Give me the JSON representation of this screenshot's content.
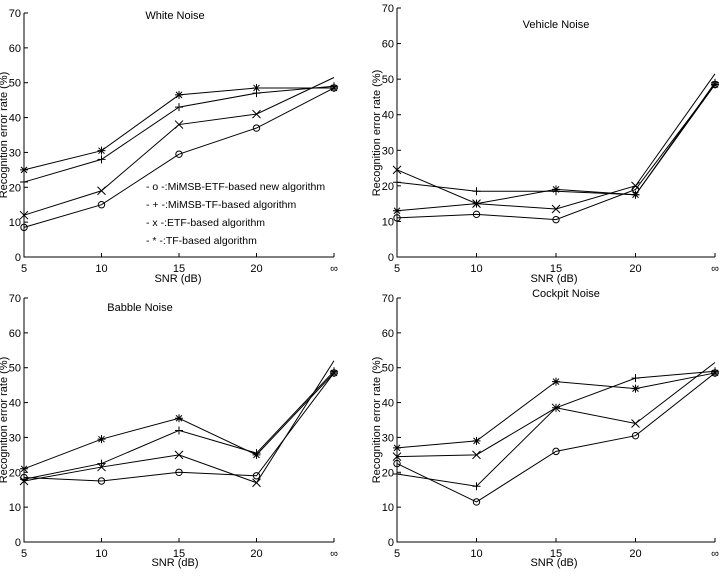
{
  "legend": [
    {
      "mark": "o",
      "text": "- o -:MiMSB-ETF-based new algorithm"
    },
    {
      "mark": "+",
      "text": "- + -:MiMSB-TF-based algorithm"
    },
    {
      "mark": "x",
      "text": "- x -:ETF-based algorithm"
    },
    {
      "mark": "*",
      "text": "- * -:TF-based algorithm"
    }
  ],
  "chart_data": [
    {
      "type": "line",
      "title": "White Noise",
      "xlabel": "SNR (dB)",
      "ylabel": "Recognition error rate (%)",
      "categories": [
        "5",
        "10",
        "15",
        "20",
        "∞"
      ],
      "ylim": [
        0,
        70
      ],
      "yticks": [
        0,
        10,
        20,
        30,
        40,
        50,
        60,
        70
      ],
      "series": [
        {
          "name": "- o -:MiMSB-ETF-based new algorithm",
          "marker": "o",
          "values": [
            8.5,
            15,
            29.5,
            37,
            48.5
          ]
        },
        {
          "name": "- + -:MiMSB-TF-based algorithm",
          "marker": "+",
          "values": [
            21.5,
            28,
            43,
            47,
            49
          ]
        },
        {
          "name": "- x -:ETF-based algorithm",
          "marker": "x",
          "values": [
            12,
            19,
            38,
            41,
            51.5
          ]
        },
        {
          "name": "- * -:TF-based algorithm",
          "marker": "*",
          "values": [
            25,
            30.5,
            46.5,
            48.5,
            48.5
          ]
        }
      ]
    },
    {
      "type": "line",
      "title": "Vehicle Noise",
      "xlabel": "SNR (dB)",
      "ylabel": "Recognition error rate (%)",
      "categories": [
        "5",
        "10",
        "15",
        "20",
        "∞"
      ],
      "ylim": [
        0,
        70
      ],
      "yticks": [
        0,
        10,
        20,
        30,
        40,
        50,
        60,
        70
      ],
      "series": [
        {
          "name": "- o -:MiMSB-ETF-based new algorithm",
          "marker": "o",
          "values": [
            11,
            12,
            10.5,
            19,
            48.5
          ]
        },
        {
          "name": "- + -:MiMSB-TF-based algorithm",
          "marker": "+",
          "values": [
            21,
            18.5,
            18.5,
            17.5,
            49
          ]
        },
        {
          "name": "- x -:ETF-based algorithm",
          "marker": "x",
          "values": [
            24.5,
            15,
            13.5,
            20,
            51.5
          ]
        },
        {
          "name": "- * -:TF-based algorithm",
          "marker": "*",
          "values": [
            13,
            15,
            19,
            17.5,
            48.5
          ]
        }
      ]
    },
    {
      "type": "line",
      "title": "Babble Noise",
      "xlabel": "SNR (dB)",
      "ylabel": "Recognition error rate (%)",
      "categories": [
        "5",
        "10",
        "15",
        "20",
        "∞"
      ],
      "ylim": [
        0,
        70
      ],
      "yticks": [
        0,
        10,
        20,
        30,
        40,
        50,
        60,
        70
      ],
      "series": [
        {
          "name": "- o -:MiMSB-ETF-based new algorithm",
          "marker": "o",
          "values": [
            18.5,
            17.5,
            20,
            19,
            48.5
          ]
        },
        {
          "name": "- + -:MiMSB-TF-based algorithm",
          "marker": "+",
          "values": [
            18,
            22.5,
            32,
            25.5,
            49
          ]
        },
        {
          "name": "- x -:ETF-based algorithm",
          "marker": "x",
          "values": [
            17.5,
            21.5,
            25,
            17,
            52
          ]
        },
        {
          "name": "- * -:TF-based algorithm",
          "marker": "*",
          "values": [
            21,
            29.5,
            35.5,
            25,
            48.5
          ]
        }
      ]
    },
    {
      "type": "line",
      "title": "Cockpit Noise",
      "xlabel": "SNR (dB)",
      "ylabel": "Recognition error rate (%)",
      "categories": [
        "5",
        "10",
        "15",
        "20",
        "∞"
      ],
      "ylim": [
        0,
        70
      ],
      "yticks": [
        0,
        10,
        20,
        30,
        40,
        50,
        60,
        70
      ],
      "series": [
        {
          "name": "- o -:MiMSB-ETF-based new algorithm",
          "marker": "o",
          "values": [
            22.5,
            11.5,
            26,
            30.5,
            48.5
          ]
        },
        {
          "name": "- + -:MiMSB-TF-based algorithm",
          "marker": "+",
          "values": [
            19.5,
            16,
            38.5,
            47,
            49
          ]
        },
        {
          "name": "- x -:ETF-based algorithm",
          "marker": "x",
          "values": [
            24.5,
            25,
            38.5,
            34,
            51.5
          ]
        },
        {
          "name": "- * -:TF-based algorithm",
          "marker": "*",
          "values": [
            27,
            29,
            46,
            44,
            48.5
          ]
        }
      ]
    }
  ]
}
